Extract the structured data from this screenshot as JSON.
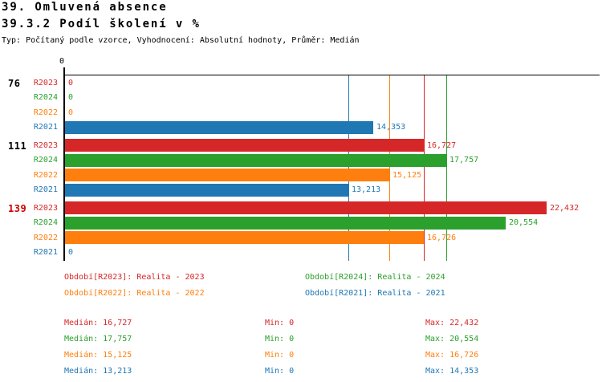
{
  "header": {
    "title_line1": "39. Omluvená absence",
    "title_line2": "39.3.2 Podíl školení v %",
    "subtitle": "Typ: Počítaný podle vzorce, Vyhodnocení: Absolutní hodnoty, Průměr: Medián"
  },
  "chart_data": {
    "type": "bar",
    "orientation": "horizontal",
    "title": "39.3.2 Podíl školení v %",
    "average_type": "Medián",
    "axis_zero_label": "0",
    "x_min": 0,
    "x_implied_max": 24850,
    "gridlines": false,
    "categories": [
      "76",
      "111",
      "139"
    ],
    "row_order": [
      "R2023",
      "R2024",
      "R2022",
      "R2021"
    ],
    "groups": [
      {
        "label": "76",
        "label_color": "#000000"
      },
      {
        "label": "111",
        "label_color": "#000000"
      },
      {
        "label": "139",
        "label_color": "#cc0000"
      }
    ],
    "series": [
      {
        "id": "R2023",
        "name": "Realita - 2023",
        "color": "#d62728",
        "values": [
          0,
          16727,
          22432
        ],
        "value_labels": [
          "0",
          "16,727",
          "22,432"
        ],
        "median": 16727,
        "min": 0,
        "max": 22432
      },
      {
        "id": "R2024",
        "name": "Realita - 2024",
        "color": "#2ca02c",
        "values": [
          0,
          17757,
          20554
        ],
        "value_labels": [
          "0",
          "17,757",
          "20,554"
        ],
        "median": 17757,
        "min": 0,
        "max": 20554
      },
      {
        "id": "R2022",
        "name": "Realita - 2022",
        "color": "#ff7f0e",
        "values": [
          0,
          15125,
          16726
        ],
        "value_labels": [
          "0",
          "15,125",
          "16,726"
        ],
        "median": 15125,
        "min": 0,
        "max": 16726
      },
      {
        "id": "R2021",
        "name": "Realita - 2021",
        "color": "#1f77b4",
        "values": [
          14353,
          13213,
          0
        ],
        "value_labels": [
          "14,353",
          "13,213",
          "0"
        ],
        "median": 13213,
        "min": 0,
        "max": 14353
      }
    ],
    "median_lines": [
      {
        "series": "R2021",
        "value": 13213,
        "color": "#1f77b4"
      },
      {
        "series": "R2022",
        "value": 15125,
        "color": "#ff7f0e"
      },
      {
        "series": "R2023",
        "value": 16727,
        "color": "#d62728"
      },
      {
        "series": "R2024",
        "value": 17757,
        "color": "#2ca02c"
      }
    ],
    "legend_position": "bottom"
  },
  "legend": {
    "items": [
      {
        "label": "Období[R2023]: Realita - 2023",
        "color": "#d62728"
      },
      {
        "label": "Období[R2024]: Realita - 2024",
        "color": "#2ca02c"
      },
      {
        "label": "Období[R2022]: Realita - 2022",
        "color": "#ff7f0e"
      },
      {
        "label": "Období[R2021]: Realita - 2021",
        "color": "#1f77b4"
      }
    ]
  },
  "stats": {
    "median_label": "Medián:",
    "min_label": "Min:",
    "max_label": "Max:",
    "rows": [
      {
        "median": "16,727",
        "min": "0",
        "max": "22,432",
        "color": "#d62728"
      },
      {
        "median": "17,757",
        "min": "0",
        "max": "20,554",
        "color": "#2ca02c"
      },
      {
        "median": "15,125",
        "min": "0",
        "max": "16,726",
        "color": "#ff7f0e"
      },
      {
        "median": "13,213",
        "min": "0",
        "max": "14,353",
        "color": "#1f77b4"
      }
    ]
  }
}
